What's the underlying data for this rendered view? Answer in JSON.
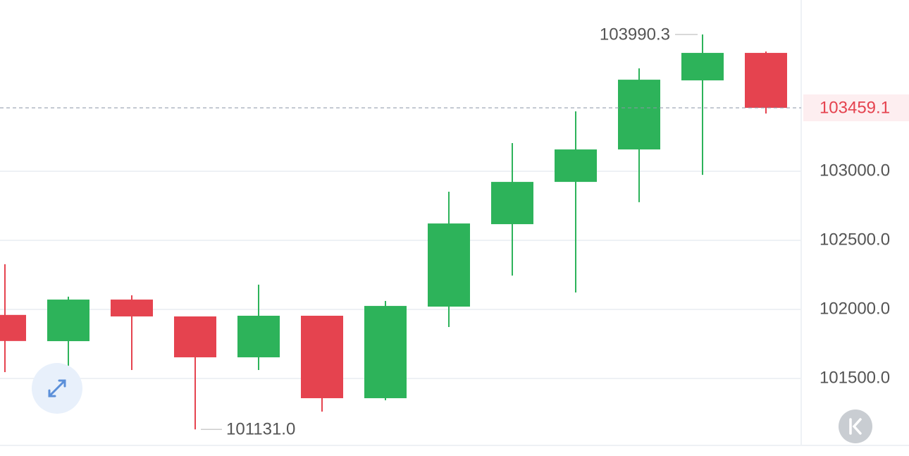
{
  "chart_data": {
    "type": "candlestick",
    "categories": [
      null,
      null,
      null,
      null,
      null,
      null,
      null,
      null,
      null,
      null,
      null,
      null,
      null
    ],
    "open": [
      101960,
      101770,
      102071,
      101949,
      101653,
      101954,
      101357,
      102020,
      102617,
      102923,
      103158,
      103658,
      103857
    ],
    "high": [
      102327,
      102092,
      102102,
      101949,
      102179,
      101954,
      102061,
      102852,
      103204,
      103434,
      103745,
      103990.3,
      103867
    ],
    "low": [
      101546,
      101510,
      101561,
      101131,
      101561,
      101260,
      101342,
      101872,
      102245,
      102122,
      102776,
      102974,
      103418
    ],
    "close": [
      101771,
      102071,
      101949,
      101653,
      101954,
      101357,
      102025,
      102622,
      102923,
      103158,
      103663,
      103857,
      103459.1
    ],
    "up_color": "#2db35a",
    "down_color": "#e5434f",
    "ylim": [
      101015,
      104240
    ],
    "yticks": [
      {
        "value": 101500,
        "label": "101500.0"
      },
      {
        "value": 102000,
        "label": "102000.0"
      },
      {
        "value": 102500,
        "label": "102500.0"
      },
      {
        "value": 103000,
        "label": "103000.0"
      }
    ],
    "grid": true,
    "last_price": 103459.1,
    "annotations": [
      {
        "value": 103990.3,
        "label": "103990.3"
      },
      {
        "value": 101131,
        "label": "101131.0"
      }
    ]
  }
}
